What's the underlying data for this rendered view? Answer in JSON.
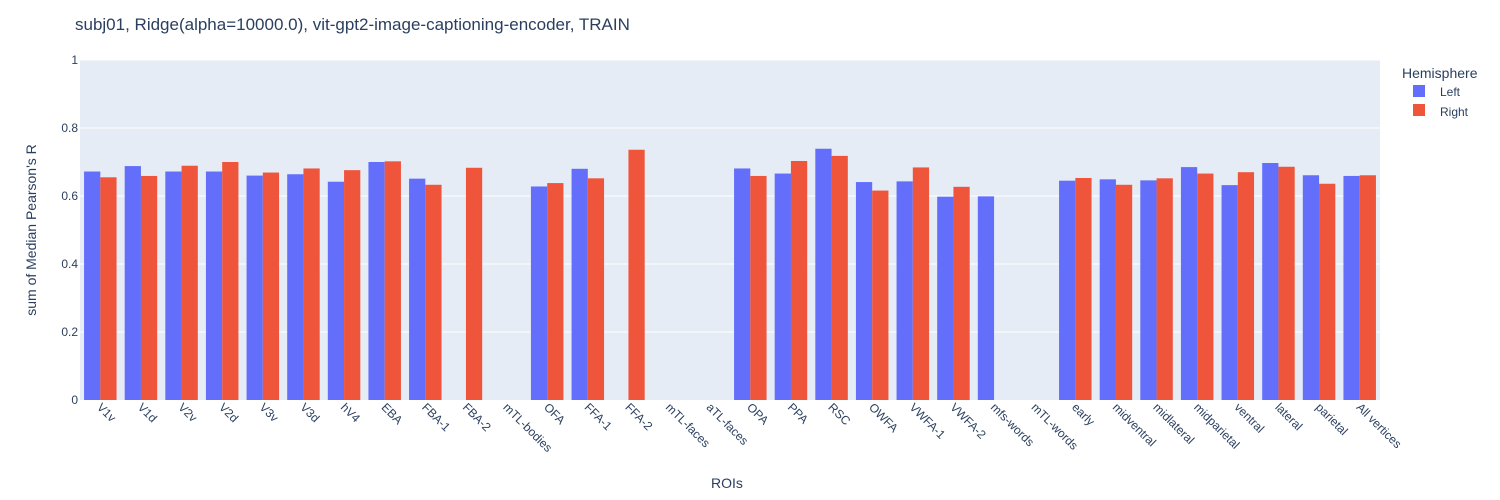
{
  "chart_data": {
    "type": "bar",
    "title": "subj01, Ridge(alpha=10000.0), vit-gpt2-image-captioning-encoder, TRAIN",
    "xlabel": "ROIs",
    "ylabel": "sum of Median Pearson's R",
    "ylim": [
      0,
      1
    ],
    "yticks": [
      "0",
      "0.2",
      "0.4",
      "0.6",
      "0.8",
      "1"
    ],
    "grid": true,
    "legend": {
      "title": "Hemisphere",
      "placement": "top-right"
    },
    "categories": [
      "V1v",
      "V1d",
      "V2v",
      "V2d",
      "V3v",
      "V3d",
      "hV4",
      "EBA",
      "FBA-1",
      "FBA-2",
      "mTL-bodies",
      "OFA",
      "FFA-1",
      "FFA-2",
      "mTL-faces",
      "aTL-faces",
      "OPA",
      "PPA",
      "RSC",
      "OWFA",
      "VWFA-1",
      "VWFA-2",
      "mfs-words",
      "mTL-words",
      "early",
      "midventral",
      "midlateral",
      "midparietal",
      "ventral",
      "lateral",
      "parietal",
      "All vertices"
    ],
    "series": [
      {
        "name": "Left",
        "color": "#636efa",
        "values": [
          0.672,
          0.688,
          0.672,
          0.672,
          0.66,
          0.664,
          0.642,
          0.7,
          0.651,
          null,
          null,
          0.628,
          0.68,
          null,
          null,
          null,
          0.681,
          0.666,
          0.739,
          0.641,
          0.643,
          0.598,
          0.599,
          null,
          0.645,
          0.649,
          0.646,
          0.685,
          0.632,
          0.697,
          0.661,
          0.659
        ]
      },
      {
        "name": "Right",
        "color": "#ef553b",
        "values": [
          0.655,
          0.659,
          0.689,
          0.7,
          0.669,
          0.681,
          0.676,
          0.702,
          0.633,
          0.683,
          null,
          0.638,
          0.652,
          0.736,
          null,
          null,
          0.659,
          0.703,
          0.718,
          0.616,
          0.684,
          0.627,
          null,
          null,
          0.653,
          0.633,
          0.652,
          0.666,
          0.67,
          0.686,
          0.636,
          0.661
        ]
      }
    ]
  }
}
